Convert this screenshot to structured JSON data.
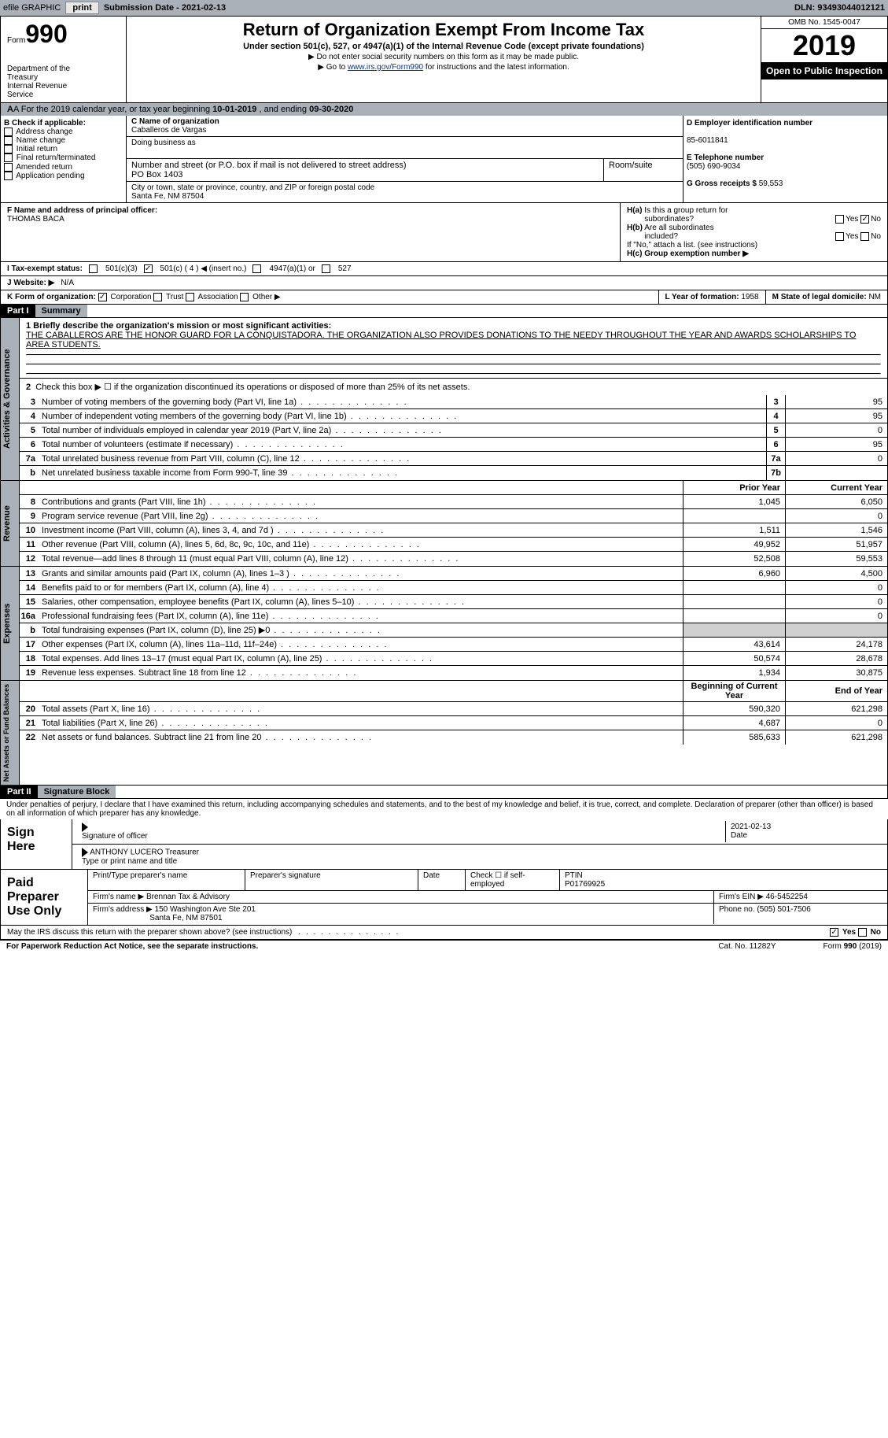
{
  "topbar": {
    "efile": "efile GRAPHIC",
    "print": "print",
    "submission_label": "Submission Date - ",
    "submission_date": "2021-02-13",
    "dln": "DLN: 93493044012121"
  },
  "header": {
    "form_prefix": "Form",
    "form_num": "990",
    "dept": "Department of the Treasury\nInternal Revenue Service",
    "title": "Return of Organization Exempt From Income Tax",
    "subtitle": "Under section 501(c), 527, or 4947(a)(1) of the Internal Revenue Code (except private foundations)",
    "note1": "▶ Do not enter social security numbers on this form as it may be made public.",
    "note2_pre": "▶ Go to ",
    "note2_link": "www.irs.gov/Form990",
    "note2_post": " for instructions and the latest information.",
    "omb": "OMB No. 1545-0047",
    "year": "2019",
    "open": "Open to Public Inspection"
  },
  "period": {
    "text_pre": "A For the 2019 calendar year, or tax year beginning ",
    "begin": "10-01-2019",
    "text_mid": " , and ending ",
    "end": "09-30-2020"
  },
  "sectionB": {
    "label": "B Check if applicable:",
    "items": [
      "Address change",
      "Name change",
      "Initial return",
      "Final return/terminated",
      "Amended return",
      "Application pending"
    ]
  },
  "sectionC": {
    "name_label": "C Name of organization",
    "name": "Caballeros de Vargas",
    "dba_label": "Doing business as",
    "dba": "",
    "addr_label": "Number and street (or P.O. box if mail is not delivered to street address)",
    "room_label": "Room/suite",
    "addr": "PO Box 1403",
    "city_label": "City or town, state or province, country, and ZIP or foreign postal code",
    "city": "Santa Fe, NM  87504"
  },
  "sectionD": {
    "label": "D Employer identification number",
    "value": "85-6011841"
  },
  "sectionE": {
    "label": "E Telephone number",
    "value": "(505) 690-9034"
  },
  "sectionG": {
    "label": "G Gross receipts $ ",
    "value": "59,553"
  },
  "sectionF": {
    "label": "F  Name and address of principal officer:",
    "value": "THOMAS BACA"
  },
  "sectionH": {
    "ha": "H(a)  Is this a group return for subordinates?",
    "hb": "H(b)  Are all subordinates included?",
    "hb_note": "If \"No,\" attach a list. (see instructions)",
    "hc": "H(c)  Group exemption number ▶",
    "yes": "Yes",
    "no": "No"
  },
  "sectionI": {
    "label": "I  Tax-exempt status:",
    "opts": [
      "501(c)(3)",
      "501(c) ( 4 ) ◀ (insert no.)",
      "4947(a)(1) or",
      "527"
    ]
  },
  "sectionJ": {
    "label": "J  Website: ▶",
    "value": "N/A"
  },
  "sectionK": {
    "label": "K Form of organization:",
    "opts": [
      "Corporation",
      "Trust",
      "Association",
      "Other ▶"
    ]
  },
  "sectionL": {
    "label": "L Year of formation: ",
    "value": "1958"
  },
  "sectionM": {
    "label": "M State of legal domicile: ",
    "value": "NM"
  },
  "part1": {
    "header": "Part I",
    "title": "Summary",
    "mission_label": "1   Briefly describe the organization's mission or most significant activities:",
    "mission": "THE CABALLEROS ARE THE HONOR GUARD FOR LA CONQUISTADORA. THE ORGANIZATION ALSO PROVIDES DONATIONS TO THE NEEDY THROUGHOUT THE YEAR AND AWARDS SCHOLARSHIPS TO AREA STUDENTS.",
    "line2": "Check this box ▶ ☐ if the organization discontinued its operations or disposed of more than 25% of its net assets."
  },
  "governance": {
    "lines": [
      {
        "n": "3",
        "t": "Number of voting members of the governing body (Part VI, line 1a)",
        "box": "3",
        "v": "95"
      },
      {
        "n": "4",
        "t": "Number of independent voting members of the governing body (Part VI, line 1b)",
        "box": "4",
        "v": "95"
      },
      {
        "n": "5",
        "t": "Total number of individuals employed in calendar year 2019 (Part V, line 2a)",
        "box": "5",
        "v": "0"
      },
      {
        "n": "6",
        "t": "Total number of volunteers (estimate if necessary)",
        "box": "6",
        "v": "95"
      },
      {
        "n": "7a",
        "t": "Total unrelated business revenue from Part VIII, column (C), line 12",
        "box": "7a",
        "v": "0"
      },
      {
        "n": "b",
        "t": "Net unrelated business taxable income from Form 990-T, line 39",
        "box": "7b",
        "v": ""
      }
    ]
  },
  "col_headers": {
    "prior": "Prior Year",
    "current": "Current Year",
    "begin": "Beginning of Current Year",
    "end": "End of Year"
  },
  "revenue": {
    "lines": [
      {
        "n": "8",
        "t": "Contributions and grants (Part VIII, line 1h)",
        "p": "1,045",
        "c": "6,050"
      },
      {
        "n": "9",
        "t": "Program service revenue (Part VIII, line 2g)",
        "p": "",
        "c": "0"
      },
      {
        "n": "10",
        "t": "Investment income (Part VIII, column (A), lines 3, 4, and 7d )",
        "p": "1,511",
        "c": "1,546"
      },
      {
        "n": "11",
        "t": "Other revenue (Part VIII, column (A), lines 5, 6d, 8c, 9c, 10c, and 11e)",
        "p": "49,952",
        "c": "51,957"
      },
      {
        "n": "12",
        "t": "Total revenue—add lines 8 through 11 (must equal Part VIII, column (A), line 12)",
        "p": "52,508",
        "c": "59,553"
      }
    ]
  },
  "expenses": {
    "lines": [
      {
        "n": "13",
        "t": "Grants and similar amounts paid (Part IX, column (A), lines 1–3 )",
        "p": "6,960",
        "c": "4,500"
      },
      {
        "n": "14",
        "t": "Benefits paid to or for members (Part IX, column (A), line 4)",
        "p": "",
        "c": "0"
      },
      {
        "n": "15",
        "t": "Salaries, other compensation, employee benefits (Part IX, column (A), lines 5–10)",
        "p": "",
        "c": "0"
      },
      {
        "n": "16a",
        "t": "Professional fundraising fees (Part IX, column (A), line 11e)",
        "p": "",
        "c": "0"
      },
      {
        "n": "b",
        "t": "Total fundraising expenses (Part IX, column (D), line 25) ▶0",
        "p": "shaded",
        "c": "shaded"
      },
      {
        "n": "17",
        "t": "Other expenses (Part IX, column (A), lines 11a–11d, 11f–24e)",
        "p": "43,614",
        "c": "24,178"
      },
      {
        "n": "18",
        "t": "Total expenses. Add lines 13–17 (must equal Part IX, column (A), line 25)",
        "p": "50,574",
        "c": "28,678"
      },
      {
        "n": "19",
        "t": "Revenue less expenses. Subtract line 18 from line 12",
        "p": "1,934",
        "c": "30,875"
      }
    ]
  },
  "netassets": {
    "lines": [
      {
        "n": "20",
        "t": "Total assets (Part X, line 16)",
        "p": "590,320",
        "c": "621,298"
      },
      {
        "n": "21",
        "t": "Total liabilities (Part X, line 26)",
        "p": "4,687",
        "c": "0"
      },
      {
        "n": "22",
        "t": "Net assets or fund balances. Subtract line 21 from line 20",
        "p": "585,633",
        "c": "621,298"
      }
    ]
  },
  "vtabs": {
    "gov": "Activities & Governance",
    "rev": "Revenue",
    "exp": "Expenses",
    "net": "Net Assets or Fund Balances"
  },
  "part2": {
    "header": "Part II",
    "title": "Signature Block",
    "declaration": "Under penalties of perjury, I declare that I have examined this return, including accompanying schedules and statements, and to the best of my knowledge and belief, it is true, correct, and complete. Declaration of preparer (other than officer) is based on all information of which preparer has any knowledge."
  },
  "sign": {
    "label": "Sign Here",
    "sig_officer": "Signature of officer",
    "date_label": "Date",
    "date": "2021-02-13",
    "name": "ANTHONY LUCERO  Treasurer",
    "name_label": "Type or print name and title"
  },
  "preparer": {
    "label": "Paid Preparer Use Only",
    "headers": [
      "Print/Type preparer's name",
      "Preparer's signature",
      "Date",
      "Check ☐ if self-employed",
      "PTIN"
    ],
    "ptin": "P01769925",
    "firm_name_label": "Firm's name    ▶ ",
    "firm_name": "Brennan Tax & Advisory",
    "firm_ein_label": "Firm's EIN ▶ ",
    "firm_ein": "46-5452254",
    "firm_addr_label": "Firm's address ▶ ",
    "firm_addr": "150 Washington Ave Ste 201",
    "firm_city": "Santa Fe, NM  87501",
    "phone_label": "Phone no. ",
    "phone": "(505) 501-7506"
  },
  "discuss": {
    "text": "May the IRS discuss this return with the preparer shown above? (see instructions)",
    "yes": "Yes",
    "no": "No"
  },
  "footer": {
    "left": "For Paperwork Reduction Act Notice, see the separate instructions.",
    "mid": "Cat. No. 11282Y",
    "right": "Form 990 (2019)"
  }
}
